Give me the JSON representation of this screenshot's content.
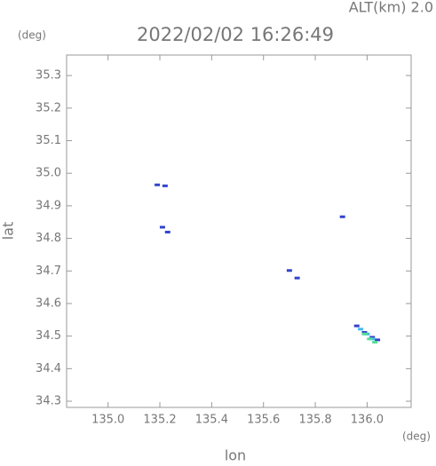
{
  "chart_data": {
    "type": "scatter",
    "title": "2022/02/02 16:26:49",
    "subtitle": "ALT(km) 2.0",
    "x_label": "lon",
    "y_label": "lat",
    "x_unit": "(deg)",
    "y_unit": "(deg)",
    "xlim": [
      134.84,
      136.17
    ],
    "ylim": [
      34.281,
      35.363
    ],
    "xticks": [
      {
        "value": 135,
        "label": "135.0"
      },
      135.2,
      135.4,
      135.6,
      135.8,
      {
        "value": 136,
        "label": "136.0"
      }
    ],
    "yticks": [
      34.3,
      34.4,
      34.5,
      34.6,
      34.7,
      34.8,
      34.9,
      {
        "value": 35,
        "label": "35.0"
      },
      35.1,
      35.2,
      35.3
    ],
    "series": [
      {
        "color": "#3344cc",
        "x": [
          135.19,
          135.22,
          135.21,
          135.23,
          135.905,
          135.7,
          135.73,
          135.96,
          135.99,
          136.02,
          136.04
        ],
        "values": [
          34.963,
          34.96,
          34.833,
          34.818,
          34.865,
          34.7,
          34.677,
          34.53,
          34.51,
          34.495,
          34.487
        ]
      },
      {
        "color": "#44bbee",
        "x": [
          135.975,
          136.0,
          136.02
        ],
        "values": [
          34.52,
          34.505,
          34.49
        ]
      },
      {
        "color": "#55dd99",
        "x": [
          135.99,
          136.01,
          136.03
        ],
        "values": [
          34.505,
          34.49,
          34.48
        ]
      }
    ]
  }
}
